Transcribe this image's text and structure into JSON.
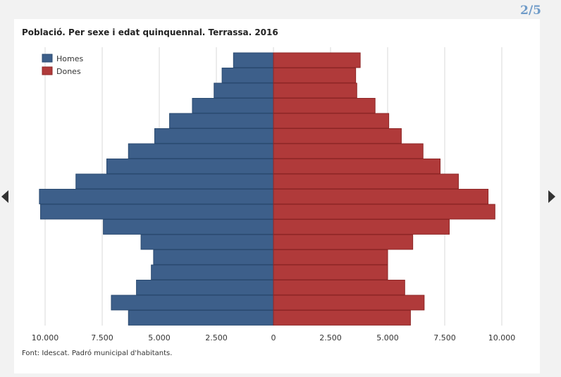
{
  "pager": {
    "label": "2/5"
  },
  "chart_data": {
    "type": "bar",
    "title": "Població. Per sexe i edat quinquennal. Terrassa. 2016",
    "source": "Font: Idescat. Padró municipal d'habitants.",
    "xlim": [
      -11000,
      11000
    ],
    "xticks": [
      {
        "value": -10000,
        "label": "10.000"
      },
      {
        "value": -7500,
        "label": "7.500"
      },
      {
        "value": -5000,
        "label": "5.000"
      },
      {
        "value": -2500,
        "label": "2.500"
      },
      {
        "value": 0,
        "label": "0"
      },
      {
        "value": 2500,
        "label": "2.500"
      },
      {
        "value": 5000,
        "label": "5.000"
      },
      {
        "value": 7500,
        "label": "7.500"
      },
      {
        "value": 10000,
        "label": "10.000"
      }
    ],
    "grid": true,
    "legend_position": "top-left",
    "series": [
      {
        "name": "Homes",
        "color": "#3d5f8a",
        "values": [
          1750,
          2250,
          2600,
          3550,
          4550,
          5200,
          6350,
          7300,
          8650,
          10250,
          10200,
          7450,
          5800,
          5250,
          5350,
          6000,
          7100,
          6350
        ]
      },
      {
        "name": "Dones",
        "color": "#b03a3a",
        "values": [
          3800,
          3600,
          3650,
          4450,
          5050,
          5600,
          6550,
          7300,
          8100,
          9400,
          9700,
          7700,
          6100,
          5000,
          5000,
          5750,
          6600,
          6000
        ]
      }
    ]
  }
}
